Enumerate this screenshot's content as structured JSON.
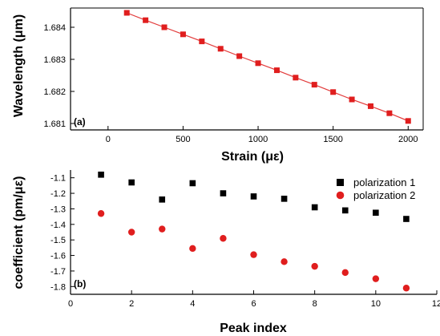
{
  "chart_data": [
    {
      "type": "line",
      "panel_label": "(a)",
      "xlabel": "Strain (με)",
      "ylabel": "Wavelength (μm)",
      "xlim": [
        -250,
        2100
      ],
      "ylim": [
        1.6808,
        1.6846
      ],
      "x_ticks": [
        "0",
        "500",
        "1000",
        "1500",
        "2000"
      ],
      "x_tick_values": [
        0,
        500,
        1000,
        1500,
        2000
      ],
      "y_ticks": [
        "1.681",
        "1.682",
        "1.683",
        "1.684"
      ],
      "y_tick_values": [
        1.681,
        1.682,
        1.683,
        1.684
      ],
      "grid": false,
      "line_color": "#e23a3a",
      "marker_color": "#e01e1e",
      "series": [
        {
          "x": [
            125,
            250,
            375,
            500,
            625,
            750,
            875,
            1000,
            1125,
            1250,
            1375,
            1500,
            1625,
            1750,
            1875,
            2000
          ],
          "y": [
            1.68445,
            1.68422,
            1.684,
            1.68378,
            1.68356,
            1.68333,
            1.6831,
            1.68288,
            1.68266,
            1.68243,
            1.68221,
            1.68198,
            1.68175,
            1.68154,
            1.68132,
            1.68108
          ]
        }
      ]
    },
    {
      "type": "scatter",
      "panel_label": "(b)",
      "xlabel": "Peak index",
      "ylabel": "coefficient (pm/με)",
      "xlim": [
        0,
        12
      ],
      "ylim": [
        -1.85,
        -1.05
      ],
      "x_ticks": [
        "0",
        "2",
        "4",
        "6",
        "8",
        "10",
        "12"
      ],
      "x_tick_values": [
        0,
        2,
        4,
        6,
        8,
        10,
        12
      ],
      "y_ticks": [
        "-1.1",
        "-1.2",
        "-1.3",
        "-1.4",
        "-1.5",
        "-1.6",
        "-1.7",
        "-1.8"
      ],
      "y_tick_values": [
        -1.1,
        -1.2,
        -1.3,
        -1.4,
        -1.5,
        -1.6,
        -1.7,
        -1.8
      ],
      "grid": false,
      "legend_position": "top-right",
      "series": [
        {
          "name": "polarization 1",
          "marker": "square",
          "color": "#000000",
          "x": [
            1,
            2,
            3,
            4,
            5,
            6,
            7,
            8,
            9,
            10,
            11
          ],
          "y": [
            -1.08,
            -1.13,
            -1.24,
            -1.135,
            -1.2,
            -1.22,
            -1.235,
            -1.29,
            -1.31,
            -1.325,
            -1.365
          ]
        },
        {
          "name": "polarization 2",
          "marker": "circle",
          "color": "#e01e1e",
          "x": [
            1,
            2,
            3,
            4,
            5,
            6,
            7,
            8,
            9,
            10,
            11
          ],
          "y": [
            -1.33,
            -1.45,
            -1.43,
            -1.555,
            -1.49,
            -1.595,
            -1.64,
            -1.67,
            -1.71,
            -1.75,
            -1.81
          ]
        }
      ]
    }
  ]
}
